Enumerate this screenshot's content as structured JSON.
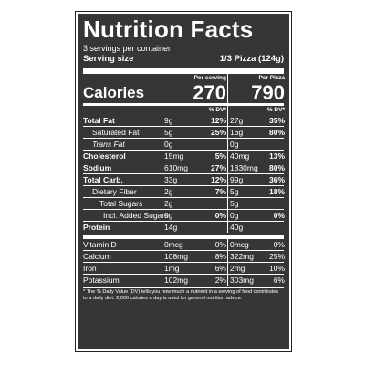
{
  "title": "Nutrition Facts",
  "servings_per_container": "3 servings per container",
  "serving_size_label": "Serving size",
  "serving_size_value": "1/3 Pizza (124g)",
  "per_serving_header": "Per serving",
  "per_pizza_header": "Per Pizza",
  "calories_label": "Calories",
  "calories_serving": "270",
  "calories_pizza": "790",
  "dv_header": "% DV*",
  "nutrients_main": [
    {
      "label": "Total Fat",
      "amt1": "9g",
      "pct1": "12%",
      "amt2": "27g",
      "pct2": "35%"
    },
    {
      "label": "Saturated Fat",
      "amt1": "5g",
      "pct1": "25%",
      "amt2": "16g",
      "pct2": "80%"
    },
    {
      "label": "Trans Fat",
      "amt1": "0g",
      "pct1": "",
      "amt2": "0g",
      "pct2": ""
    },
    {
      "label": "Cholesterol",
      "amt1": "15mg",
      "pct1": "5%",
      "amt2": "40mg",
      "pct2": "13%"
    },
    {
      "label": "Sodium",
      "amt1": "610mg",
      "pct1": "27%",
      "amt2": "1830mg",
      "pct2": "80%"
    },
    {
      "label": "Total Carb.",
      "amt1": "33g",
      "pct1": "12%",
      "amt2": "99g",
      "pct2": "36%"
    },
    {
      "label": "Dietary Fiber",
      "amt1": "2g",
      "pct1": "7%",
      "amt2": "5g",
      "pct2": "18%"
    },
    {
      "label": "Total Sugars",
      "amt1": "2g",
      "pct1": "",
      "amt2": "5g",
      "pct2": ""
    },
    {
      "label": "Incl. Added Sugars",
      "amt1": "0g",
      "pct1": "0%",
      "amt2": "0g",
      "pct2": "0%"
    },
    {
      "label": "Protein",
      "amt1": "14g",
      "pct1": "",
      "amt2": "40g",
      "pct2": ""
    }
  ],
  "nutrients_vitamins": [
    {
      "label": "Vitamin D",
      "amt1": "0mcg",
      "pct1": "0%",
      "amt2": "0mcg",
      "pct2": "0%"
    },
    {
      "label": "Calcium",
      "amt1": "108mg",
      "pct1": "8%",
      "amt2": "322mg",
      "pct2": "25%"
    },
    {
      "label": "Iron",
      "amt1": "1mg",
      "pct1": "6%",
      "amt2": "2mg",
      "pct2": "10%"
    },
    {
      "label": "Potassium",
      "amt1": "102mg",
      "pct1": "2%",
      "amt2": "303mg",
      "pct2": "6%"
    }
  ],
  "footnote": "* The % Daily Value (DV) tells you how much a nutrient in a serving of food contributes to a daily diet. 2,000 calories a day is used for general nutrition advice.",
  "colors": {
    "background": "#363636",
    "text": "#ffffff"
  }
}
